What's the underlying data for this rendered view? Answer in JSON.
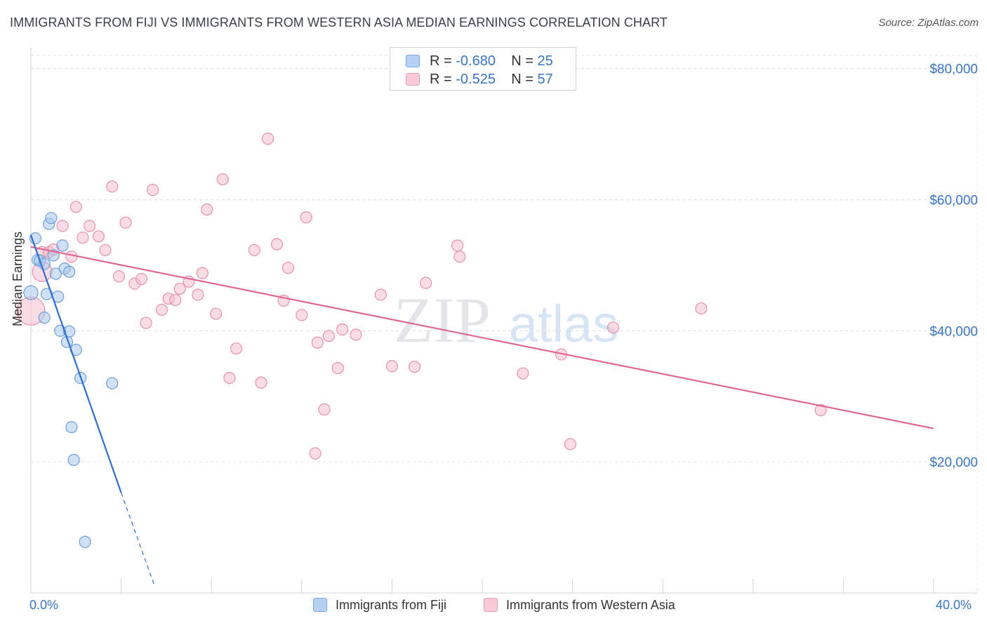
{
  "title": "IMMIGRANTS FROM FIJI VS IMMIGRANTS FROM WESTERN ASIA MEDIAN EARNINGS CORRELATION CHART",
  "source": "Source: ZipAtlas.com",
  "watermark": {
    "zip": "ZIP",
    "atlas": "atlas"
  },
  "legend": {
    "fiji": {
      "r_label": "R =",
      "r_value": "-0.680",
      "n_label": "N =",
      "n_value": "25"
    },
    "wasia": {
      "r_label": "R =",
      "r_value": "-0.525",
      "n_label": "N =",
      "n_value": "57"
    }
  },
  "bottom_legend": {
    "fiji": "Immigrants from Fiji",
    "wasia": "Immigrants from Western Asia"
  },
  "x_ticks": {
    "min_label": "0.0%",
    "max_label": "40.0%"
  },
  "colors": {
    "fiji_fill": "#a9c8ef",
    "fiji_stroke": "#6f9fd8",
    "fiji_line": "#2f6fcf",
    "wasia_fill": "#f6bfd0",
    "wasia_stroke": "#e891ad",
    "wasia_line": "#e06890",
    "axis_label": "#3a75c4"
  },
  "chart_data": {
    "type": "scatter",
    "title": "IMMIGRANTS FROM FIJI VS IMMIGRANTS FROM WESTERN ASIA MEDIAN EARNINGS CORRELATION CHART",
    "xlabel": "",
    "ylabel": "Median Earnings",
    "xlim": [
      0,
      40
    ],
    "ylim": [
      0,
      82000
    ],
    "y_ticks": [
      {
        "value": 20000,
        "label": "$20,000"
      },
      {
        "value": 40000,
        "label": "$40,000"
      },
      {
        "value": 60000,
        "label": "$60,000"
      },
      {
        "value": 80000,
        "label": "$80,000"
      }
    ],
    "series": [
      {
        "name": "Immigrants from Fiji",
        "r": -0.68,
        "n": 25,
        "points": [
          [
            0.0,
            45800,
            10
          ],
          [
            0.2,
            54100,
            8
          ],
          [
            0.3,
            50800,
            8
          ],
          [
            0.4,
            50700,
            8
          ],
          [
            0.6,
            50200,
            8
          ],
          [
            0.7,
            45600,
            8
          ],
          [
            0.6,
            42000,
            8
          ],
          [
            0.8,
            56300,
            8
          ],
          [
            0.9,
            57200,
            8
          ],
          [
            1.0,
            51500,
            8
          ],
          [
            1.1,
            48700,
            8
          ],
          [
            1.2,
            45200,
            8
          ],
          [
            1.3,
            40000,
            8
          ],
          [
            1.4,
            53000,
            8
          ],
          [
            1.5,
            49500,
            8
          ],
          [
            1.6,
            38300,
            8
          ],
          [
            1.7,
            39900,
            8
          ],
          [
            1.7,
            49000,
            8
          ],
          [
            2.0,
            37100,
            8
          ],
          [
            2.2,
            32800,
            8
          ],
          [
            1.8,
            25300,
            8
          ],
          [
            1.9,
            20300,
            8
          ],
          [
            2.4,
            7800,
            8
          ],
          [
            3.6,
            32000,
            8
          ]
        ],
        "trend_solid": [
          [
            0.0,
            54600
          ],
          [
            4.0,
            15300
          ]
        ],
        "trend_dashed": [
          [
            4.0,
            15300
          ],
          [
            5.5,
            900
          ]
        ]
      },
      {
        "name": "Immigrants from Western Asia",
        "r": -0.525,
        "n": 57,
        "points": [
          [
            0.0,
            43000,
            20
          ],
          [
            0.5,
            49000,
            14
          ],
          [
            0.5,
            52000,
            8
          ],
          [
            0.8,
            52000,
            8
          ],
          [
            1.0,
            52400,
            8
          ],
          [
            1.4,
            56000,
            8
          ],
          [
            1.8,
            51300,
            8
          ],
          [
            2.0,
            58900,
            8
          ],
          [
            2.3,
            54200,
            8
          ],
          [
            2.6,
            56000,
            8
          ],
          [
            3.0,
            54400,
            8
          ],
          [
            3.3,
            52300,
            8
          ],
          [
            3.6,
            62000,
            8
          ],
          [
            3.9,
            48300,
            8
          ],
          [
            4.2,
            56500,
            8
          ],
          [
            4.6,
            47200,
            8
          ],
          [
            4.9,
            47900,
            8
          ],
          [
            5.1,
            41200,
            8
          ],
          [
            5.4,
            61500,
            8
          ],
          [
            5.8,
            43200,
            8
          ],
          [
            6.1,
            44900,
            8
          ],
          [
            6.4,
            44700,
            8
          ],
          [
            6.6,
            46400,
            8
          ],
          [
            7.0,
            47500,
            8
          ],
          [
            7.4,
            45500,
            8
          ],
          [
            7.6,
            48800,
            8
          ],
          [
            7.8,
            58500,
            8
          ],
          [
            8.2,
            42600,
            8
          ],
          [
            8.5,
            63100,
            8
          ],
          [
            8.8,
            32800,
            8
          ],
          [
            9.1,
            37300,
            8
          ],
          [
            9.9,
            52300,
            8
          ],
          [
            10.2,
            32100,
            8
          ],
          [
            10.5,
            69300,
            8
          ],
          [
            10.9,
            53200,
            8
          ],
          [
            11.2,
            44600,
            8
          ],
          [
            11.4,
            49600,
            8
          ],
          [
            12.0,
            42400,
            8
          ],
          [
            12.2,
            57300,
            8
          ],
          [
            12.7,
            38200,
            8
          ],
          [
            13.0,
            28000,
            8
          ],
          [
            12.6,
            21300,
            8
          ],
          [
            13.2,
            39200,
            8
          ],
          [
            13.6,
            34300,
            8
          ],
          [
            13.8,
            40200,
            8
          ],
          [
            14.4,
            39400,
            8
          ],
          [
            15.5,
            45500,
            8
          ],
          [
            16.0,
            34600,
            8
          ],
          [
            17.0,
            34500,
            8
          ],
          [
            17.5,
            47300,
            8
          ],
          [
            18.9,
            53000,
            8
          ],
          [
            19.0,
            51300,
            8
          ],
          [
            21.8,
            33500,
            8
          ],
          [
            23.5,
            36400,
            8
          ],
          [
            23.9,
            22700,
            8
          ],
          [
            25.8,
            40500,
            8
          ],
          [
            29.7,
            43400,
            8
          ],
          [
            35.0,
            27900,
            8
          ]
        ],
        "trend_solid": [
          [
            0.0,
            52800
          ],
          [
            40.0,
            25100
          ]
        ]
      }
    ]
  }
}
